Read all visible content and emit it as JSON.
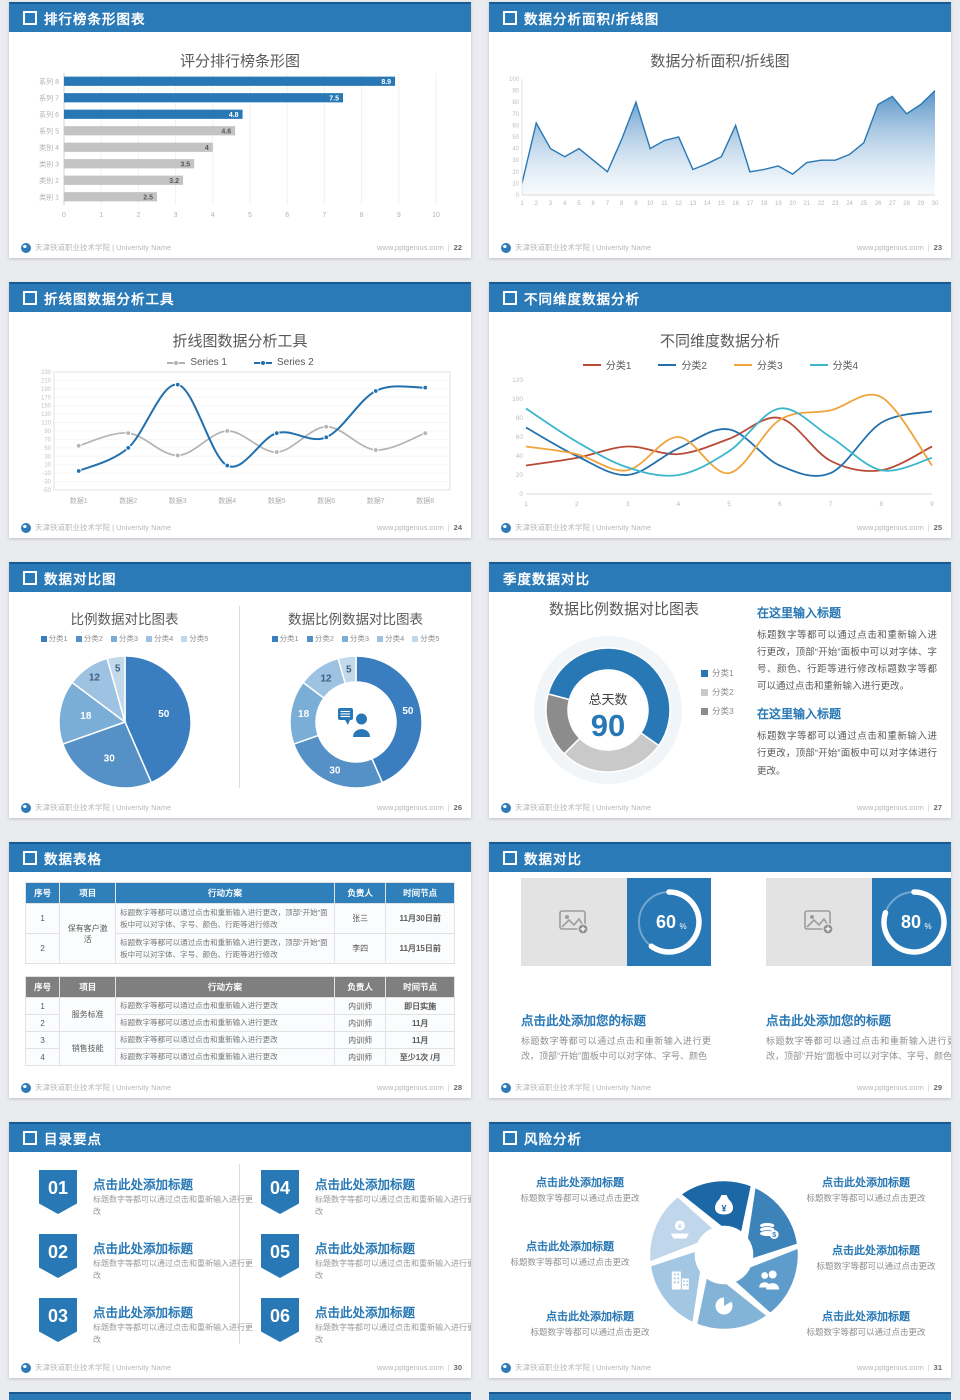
{
  "footer": {
    "school": "天津铁道职业技术学院 | University Name",
    "site": "www.pptgenius.com",
    "sep": "|"
  },
  "slides": [
    {
      "title": "排行榜条形图表",
      "page": "22",
      "has_icon": true,
      "type": "barh"
    },
    {
      "title": "数据分析面积/折线图",
      "page": "23",
      "has_icon": true,
      "type": "area"
    },
    {
      "title": "折线图数据分析工具",
      "page": "24",
      "has_icon": true,
      "type": "line2"
    },
    {
      "title": "不同维度数据分析",
      "page": "25",
      "has_icon": true,
      "type": "line4"
    },
    {
      "title": "数据对比图",
      "page": "26",
      "has_icon": true,
      "type": "pies"
    },
    {
      "title": "季度数据对比",
      "page": "27",
      "has_icon": false,
      "type": "donut90"
    },
    {
      "title": "数据表格",
      "page": "28",
      "has_icon": true,
      "type": "tables"
    },
    {
      "title": "数据对比",
      "page": "29",
      "has_icon": true,
      "type": "progress"
    },
    {
      "title": "目录要点",
      "page": "30",
      "has_icon": true,
      "type": "toc"
    },
    {
      "title": "风险分析",
      "page": "31",
      "has_icon": true,
      "type": "risk"
    }
  ],
  "chart_data": [
    {
      "type": "bar",
      "orientation": "horizontal",
      "title": "评分排行榜条形图",
      "categories": [
        "系列 8",
        "系列 7",
        "系列 6",
        "系列 5",
        "类别 4",
        "类别 3",
        "类别 2",
        "类别 1"
      ],
      "values": [
        8.9,
        7.5,
        4.8,
        4.6,
        4,
        3.5,
        3.2,
        2.5
      ],
      "value_labels": [
        "8.9",
        "7.5",
        "4.8",
        "4.6",
        "4",
        "3.5",
        "3.2",
        "2.5"
      ],
      "bar_colors": [
        "#2878b5",
        "#2878b5",
        "#2878b5",
        "#c3c3c3",
        "#c3c3c3",
        "#c3c3c3",
        "#c3c3c3",
        "#c3c3c3"
      ],
      "label_colors": [
        "#ffffff",
        "#ffffff",
        "#ffffff",
        "#595959",
        "#595959",
        "#595959",
        "#595959",
        "#595959"
      ],
      "xlim": [
        0,
        10
      ],
      "xticks": [
        0,
        1,
        2,
        3,
        4,
        5,
        6,
        7,
        8,
        9,
        10
      ],
      "grid": true,
      "legend": "none"
    },
    {
      "type": "area",
      "title": "数据分析面积/折线图",
      "x": [
        1,
        2,
        3,
        4,
        5,
        6,
        7,
        8,
        9,
        10,
        11,
        12,
        13,
        14,
        15,
        16,
        17,
        18,
        19,
        20,
        21,
        22,
        23,
        24,
        25,
        26,
        27,
        28,
        29,
        30
      ],
      "values": [
        10,
        62,
        40,
        33,
        40,
        30,
        20,
        48,
        80,
        40,
        47,
        50,
        22,
        27,
        33,
        60,
        20,
        22,
        25,
        18,
        28,
        30,
        30,
        35,
        45,
        78,
        85,
        70,
        78,
        90
      ],
      "ylim": [
        0,
        100
      ],
      "yticks": [
        0,
        10,
        20,
        30,
        40,
        50,
        60,
        70,
        80,
        90,
        100
      ],
      "line_color": "#2878b5",
      "fill_top": "#4e8dc3",
      "fill_bottom": "#e9f2fa",
      "legend": "none"
    },
    {
      "type": "line",
      "title": "折线图数据分析工具",
      "categories": [
        "数据1",
        "数据2",
        "数据3",
        "数据4",
        "数据5",
        "数据6",
        "数据7",
        "数据8"
      ],
      "ylim": [
        -50,
        230
      ],
      "ytick_step": 20,
      "markers": true,
      "legend_position": "top",
      "series": [
        {
          "name": "Series 1",
          "color": "#b3b3b3",
          "values": [
            55,
            85,
            32,
            90,
            40,
            100,
            45,
            85
          ]
        },
        {
          "name": "Series 2",
          "color": "#2271ae",
          "values": [
            -5,
            50,
            200,
            8,
            85,
            75,
            185,
            193
          ]
        }
      ]
    },
    {
      "type": "line",
      "title": "不同维度数据分析",
      "x": [
        1,
        2,
        3,
        4,
        5,
        6,
        7,
        8,
        9
      ],
      "ylim": [
        0,
        120
      ],
      "yticks": [
        0,
        20,
        40,
        60,
        80,
        100,
        120
      ],
      "markers": false,
      "legend_position": "top",
      "series": [
        {
          "name": "分类1",
          "color": "#b84b38",
          "values": [
            30,
            38,
            50,
            42,
            58,
            80,
            35,
            25,
            50
          ]
        },
        {
          "name": "分类2",
          "color": "#2271ae",
          "values": [
            70,
            40,
            20,
            48,
            68,
            30,
            22,
            75,
            87
          ]
        },
        {
          "name": "分类3",
          "color": "#f0a43c",
          "values": [
            50,
            42,
            25,
            60,
            22,
            78,
            88,
            102,
            30
          ]
        },
        {
          "name": "分类4",
          "color": "#3bb6cc",
          "values": [
            90,
            55,
            28,
            20,
            45,
            90,
            60,
            25,
            38
          ]
        }
      ]
    },
    {
      "type": "pie",
      "title": "比例数据对比图表",
      "labels": [
        "分类1",
        "分类2",
        "分类3",
        "分类4",
        "分类5"
      ],
      "values": [
        50,
        30,
        18,
        12,
        5
      ],
      "colors": [
        "#3a7ebf",
        "#5591c6",
        "#7baed6",
        "#9ec3e2",
        "#c2d9ec"
      ]
    },
    {
      "type": "donut",
      "title": "数据比例数据对比图表",
      "labels": [
        "分类1",
        "分类2",
        "分类3",
        "分类4",
        "分类5"
      ],
      "values": [
        50,
        30,
        18,
        12,
        5
      ],
      "colors": [
        "#3a7ebf",
        "#5591c6",
        "#7baed6",
        "#9ec3e2",
        "#c2d9ec"
      ],
      "center_icon": "person-chat"
    },
    {
      "type": "donut",
      "title": "数据比例数据对比图表",
      "labels": [
        "分类1",
        "分类2",
        "分类3"
      ],
      "values": [
        50,
        25,
        15
      ],
      "colors": [
        "#2878b5",
        "#c9c9c9",
        "#8c8c8c"
      ],
      "start_angle": -75,
      "center_label": "总天数",
      "center_value": "90"
    }
  ],
  "quarter_blocks": [
    {
      "heading": "在这里输入标题",
      "body": "标题数字等都可以通过点击和重新输入进行更改，顶部“开始”面板中可以对字体、字号、颜色、行距等进行修改标题数字等都可以通过点击和重新输入进行更改。"
    },
    {
      "heading": "在这里输入标题",
      "body": "标题数字等都可以通过点击和重新输入进行更改，顶部“开始”面板中可以对字体进行更改。"
    }
  ],
  "tables": {
    "headers": [
      "序号",
      "项目",
      "行动方案",
      "负责人",
      "时间节点"
    ],
    "table1": {
      "style": "blue",
      "rows": [
        {
          "no": "1",
          "item": "保有客户激活",
          "item_span": 2,
          "action": "标题数字等都可以通过点击和重新输入进行更改，顶部“开始”面板中可以对字体、字号、颜色、行距等进行修改",
          "owner": "张三",
          "time": "11月30日前"
        },
        {
          "no": "2",
          "action": "标题数字等都可以通过点击和重新输入进行更改，顶部“开始”面板中可以对字体、字号、颜色、行距等进行修改",
          "owner": "李四",
          "time": "11月15日前"
        }
      ]
    },
    "table2": {
      "style": "gray",
      "rows": [
        {
          "no": "1",
          "item": "服务标准",
          "item_span": 2,
          "action": "标题数字等都可以通过点击和重新输入进行更改",
          "owner": "内训师",
          "time": "即日实施"
        },
        {
          "no": "2",
          "action": "标题数字等都可以通过点击和重新输入进行更改",
          "owner": "内训师",
          "time": "11月"
        },
        {
          "no": "3",
          "item": "销售技能",
          "item_span": 2,
          "action": "标题数字等都可以通过点击和重新输入进行更改",
          "owner": "内训师",
          "time": "11月"
        },
        {
          "no": "4",
          "action": "标题数字等都可以通过点击和重新输入进行更改",
          "owner": "内训师",
          "time": "至少1次 /月"
        }
      ]
    }
  },
  "progress": {
    "items": [
      {
        "percent": 60,
        "title": "点击此处添加您的标题",
        "body": "标题数字等都可以通过点击和重新输入进行更改，顶部“开始”面板中可以对字体、字号、颜色"
      },
      {
        "percent": 80,
        "title": "点击此处添加您的标题",
        "body": "标题数字等都可以通过点击和重新输入进行更改，顶部“开始”面板中可以对字体、字号、颜色"
      }
    ]
  },
  "toc": {
    "items": [
      {
        "num": "01",
        "title": "点击此处添加标题",
        "desc": "标题数字等都可以通过点击和重新输入进行更改"
      },
      {
        "num": "02",
        "title": "点击此处添加标题",
        "desc": "标题数字等都可以通过点击和重新输入进行更改"
      },
      {
        "num": "03",
        "title": "点击此处添加标题",
        "desc": "标题数字等都可以通过点击和重新输入进行更改"
      },
      {
        "num": "04",
        "title": "点击此处添加标题",
        "desc": "标题数字等都可以通过点击和重新输入进行更改"
      },
      {
        "num": "05",
        "title": "点击此处添加标题",
        "desc": "标题数字等都可以通过点击和重新输入进行更改"
      },
      {
        "num": "06",
        "title": "点击此处添加标题",
        "desc": "标题数字等都可以通过点击和重新输入进行更改"
      }
    ]
  },
  "risk": {
    "petal_colors": [
      "#1c67a5",
      "#3c83ba",
      "#5e9ccb",
      "#84b3d8",
      "#a3c6e2",
      "#c0d6ea"
    ],
    "icons": [
      "moneybag-icon",
      "coins-icon",
      "people-icon",
      "pie-icon",
      "building-icon",
      "hand-coin-icon"
    ],
    "labels": [
      {
        "title": "点击此处添加标题",
        "desc": "标题数字等都可以通过点击更改"
      },
      {
        "title": "点击此处添加标题",
        "desc": "标题数字等都可以通过点击更改"
      },
      {
        "title": "点击此处添加标题",
        "desc": "标题数字等都可以通过点击更改"
      },
      {
        "title": "点击此处添加标题",
        "desc": "标题数字等都可以通过点击更改"
      },
      {
        "title": "点击此处添加标题",
        "desc": "标题数字等都可以通过点击更改"
      },
      {
        "title": "点击此处添加标题",
        "desc": "标题数字等都可以通过点击更改"
      }
    ]
  }
}
